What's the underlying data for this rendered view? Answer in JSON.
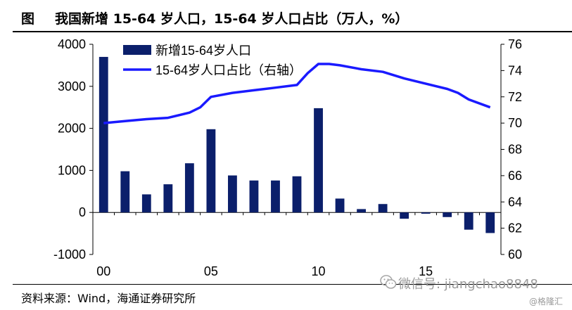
{
  "header": {
    "figure_label": "图",
    "title": "我国新增 15-64 岁人口，15-64 岁人口占比（万人，%）"
  },
  "footer": {
    "source": "资料来源：Wind，海通证券研究所"
  },
  "watermark": {
    "text": "微信号: jiangchao8848",
    "corner": "@格隆汇"
  },
  "chart_data": {
    "type": "bar",
    "title": "我国新增 15-64 岁人口，15-64 岁人口占比（万人，%）",
    "x_tick_labels": [
      "00",
      "05",
      "10",
      "15"
    ],
    "x_tick_years": [
      2000,
      2005,
      2010,
      2015
    ],
    "years": [
      2000,
      2001,
      2002,
      2003,
      2004,
      2005,
      2006,
      2007,
      2008,
      2009,
      2010,
      2011,
      2012,
      2013,
      2014,
      2015,
      2016,
      2017,
      2018
    ],
    "y_left": {
      "ticks": [
        "4000",
        "3000",
        "2000",
        "1000",
        "0",
        "-1000"
      ],
      "range": [
        -1000,
        4000
      ],
      "unit": "万人"
    },
    "y_right": {
      "ticks": [
        "76",
        "74",
        "72",
        "70",
        "68",
        "66",
        "64",
        "62",
        "60"
      ],
      "range": [
        60,
        76
      ],
      "unit": "%"
    },
    "legend_position": "top-left",
    "series": [
      {
        "name": "新增15-64岁人口",
        "type": "bar",
        "axis": "left",
        "color": "#0b1f6b",
        "values": [
          3700,
          980,
          430,
          670,
          1170,
          1980,
          880,
          760,
          760,
          860,
          2480,
          330,
          80,
          200,
          -150,
          -30,
          -110,
          -410,
          -490
        ]
      },
      {
        "name": "15-64岁人口占比（右轴）",
        "type": "line",
        "axis": "right",
        "color": "#1a1aff",
        "x": [
          2000.0,
          2001.0,
          2002.0,
          2003.0,
          2004.0,
          2004.5,
          2005.0,
          2006.0,
          2007.0,
          2008.0,
          2009.0,
          2009.5,
          2010.0,
          2010.5,
          2011.0,
          2012.0,
          2013.0,
          2014.0,
          2015.0,
          2016.0,
          2016.5,
          2017.0,
          2018.0
        ],
        "values": [
          70.0,
          70.15,
          70.3,
          70.4,
          70.8,
          71.2,
          72.0,
          72.3,
          72.5,
          72.7,
          72.9,
          73.8,
          74.5,
          74.5,
          74.4,
          74.1,
          73.9,
          73.4,
          73.0,
          72.6,
          72.3,
          71.8,
          71.2
        ]
      }
    ]
  }
}
